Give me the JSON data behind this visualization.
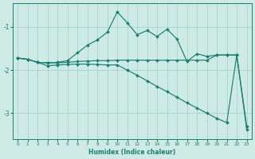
{
  "line1_x": [
    0,
    1,
    2,
    3,
    4,
    5,
    6,
    7,
    8,
    9,
    10,
    11,
    12,
    13,
    14,
    15,
    16,
    17,
    18,
    19,
    20,
    21,
    22,
    23
  ],
  "line1_y": [
    -1.72,
    -1.75,
    -1.82,
    -1.83,
    -1.82,
    -1.78,
    -1.6,
    -1.42,
    -1.3,
    -1.12,
    -0.65,
    -0.9,
    -1.18,
    -1.08,
    -1.22,
    -1.05,
    -1.28,
    -1.8,
    -1.62,
    -1.68,
    -1.65,
    -1.65,
    -1.65,
    -3.3
  ],
  "line2_x": [
    0,
    1,
    2,
    3,
    4,
    5,
    6,
    7,
    8,
    9,
    10,
    11,
    12,
    13,
    14,
    15,
    16,
    17,
    18,
    19,
    20,
    21,
    22
  ],
  "line2_y": [
    -1.72,
    -1.75,
    -1.82,
    -1.83,
    -1.83,
    -1.82,
    -1.8,
    -1.79,
    -1.78,
    -1.78,
    -1.77,
    -1.77,
    -1.77,
    -1.77,
    -1.77,
    -1.77,
    -1.77,
    -1.77,
    -1.77,
    -1.77,
    -1.65,
    -1.65,
    -1.65
  ],
  "line3_x": [
    0,
    1,
    2,
    3,
    4,
    5,
    6,
    7,
    8,
    9,
    10,
    11,
    12,
    13,
    14,
    15,
    16,
    17,
    18,
    19,
    20,
    21,
    22,
    23
  ],
  "line3_y": [
    -1.72,
    -1.75,
    -1.82,
    -1.9,
    -1.88,
    -1.87,
    -1.86,
    -1.86,
    -1.87,
    -1.88,
    -1.88,
    -2.0,
    -2.12,
    -2.25,
    -2.38,
    -2.5,
    -2.63,
    -2.76,
    -2.88,
    -3.0,
    -3.12,
    -3.22,
    -1.65,
    -3.38
  ],
  "bg_color": "#ceeae4",
  "grid_color": "#a8d4cc",
  "line_color": "#1a7f72",
  "xlabel": "Humidex (Indice chaleur)",
  "yticks": [
    -3,
    -2,
    -1
  ],
  "xticks": [
    0,
    1,
    2,
    3,
    4,
    5,
    6,
    7,
    8,
    9,
    10,
    11,
    12,
    13,
    14,
    15,
    16,
    17,
    18,
    19,
    20,
    21,
    22,
    23
  ],
  "xlim": [
    -0.5,
    23.5
  ],
  "ylim": [
    -3.6,
    -0.45
  ]
}
